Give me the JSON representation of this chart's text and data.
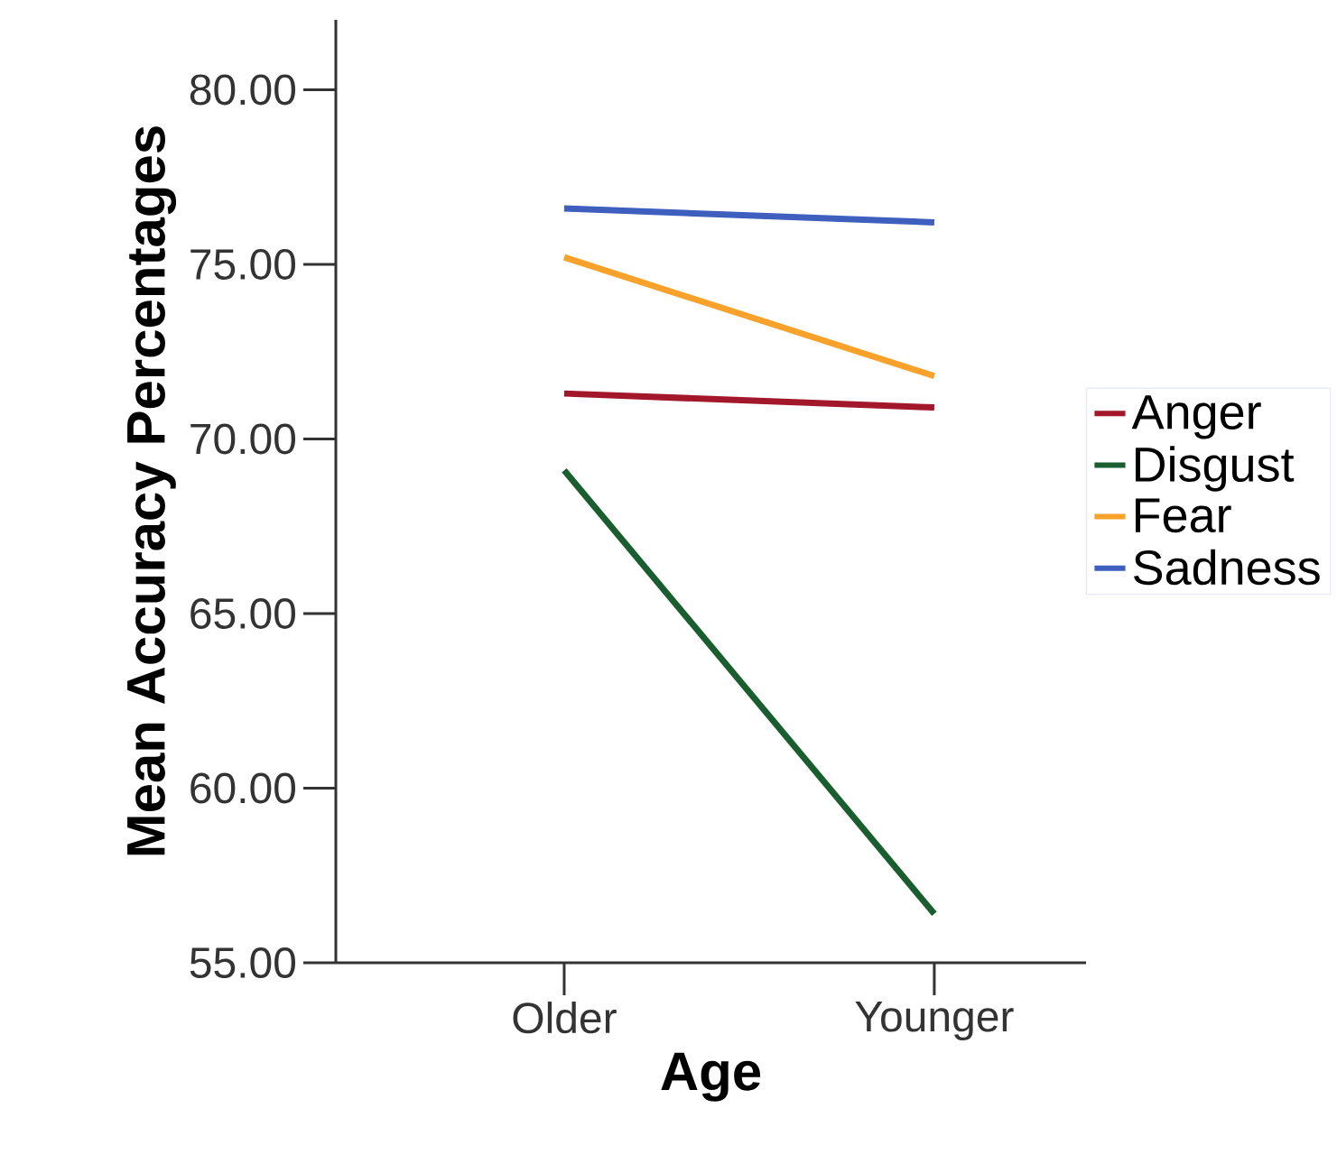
{
  "chart_data": {
    "type": "line",
    "xlabel": "Age",
    "ylabel": "Mean Accuracy Percentages",
    "categories": [
      "Older",
      "Younger"
    ],
    "series": [
      {
        "name": "Anger",
        "color": "#a3172b",
        "values": [
          71.3,
          70.9
        ]
      },
      {
        "name": "Disgust",
        "color": "#1a5e2f",
        "values": [
          69.1,
          56.4
        ]
      },
      {
        "name": "Fear",
        "color": "#f8a22c",
        "values": [
          75.2,
          71.8
        ]
      },
      {
        "name": "Sadness",
        "color": "#3f5fbf",
        "values": [
          76.6,
          76.2
        ]
      }
    ],
    "ylim": [
      55,
      82
    ],
    "yticks": [
      {
        "value": 55,
        "label": "55.00"
      },
      {
        "value": 60,
        "label": "60.00"
      },
      {
        "value": 65,
        "label": "65.00"
      },
      {
        "value": 70,
        "label": "70.00"
      },
      {
        "value": 75,
        "label": "75.00"
      },
      {
        "value": 80,
        "label": "80.00"
      }
    ],
    "legend": "right"
  }
}
